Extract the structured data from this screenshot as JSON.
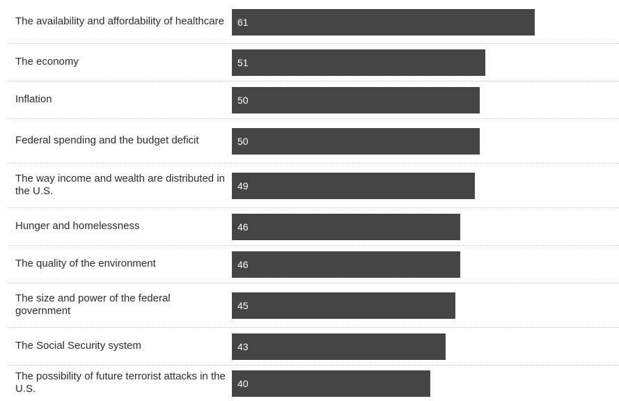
{
  "chart_data": {
    "type": "bar",
    "orientation": "horizontal",
    "categories": [
      "The availability and affordability of healthcare",
      "The economy",
      "Inflation",
      "Federal spending and the budget deficit",
      "The way income and wealth are distributed in the U.S.",
      "Hunger and homelessness",
      "The quality of the environment",
      "The size and power of the federal government",
      "The Social Security system",
      "The possibility of future terrorist attacks in the U.S."
    ],
    "values": [
      61,
      51,
      50,
      50,
      49,
      46,
      46,
      45,
      43,
      40
    ],
    "value_labels": [
      "61",
      "51",
      "50",
      "50",
      "49",
      "46",
      "46",
      "45",
      "43",
      "40"
    ],
    "xlim": [
      0,
      78
    ],
    "grid": false,
    "bar_color": "#454545",
    "value_label_color": "#ffffff",
    "label_color": "#2b2b2b",
    "divider_color": "#c8c8c8"
  }
}
